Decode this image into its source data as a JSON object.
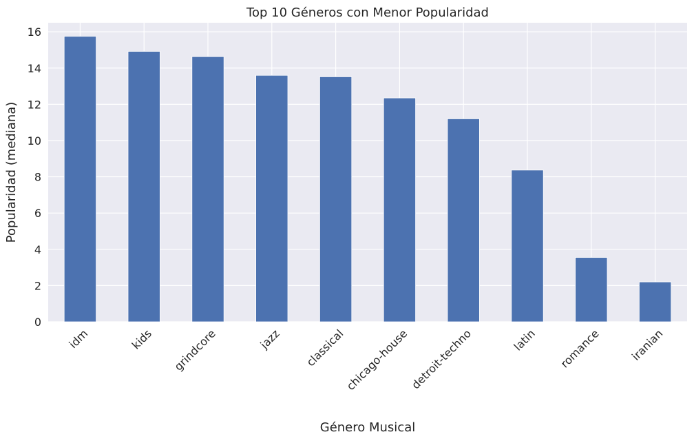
{
  "chart_data": {
    "type": "bar",
    "title": "Top 10 Géneros con Menor Popularidad",
    "xlabel": "Género Musical",
    "ylabel": "Popularidad (mediana)",
    "categories": [
      "idm",
      "kids",
      "grindcore",
      "jazz",
      "classical",
      "chicago-house",
      "detroit-techno",
      "latin",
      "romance",
      "iranian"
    ],
    "values": [
      15.75,
      14.92,
      14.63,
      13.6,
      13.52,
      12.35,
      11.2,
      8.37,
      3.55,
      2.2
    ],
    "ylim": [
      0,
      16.5
    ],
    "yticks": [
      0,
      2,
      4,
      6,
      8,
      10,
      12,
      14,
      16
    ],
    "grid": true,
    "colors": {
      "bar": "#4c72b0",
      "plot_background": "#eaeaf2",
      "grid": "#ffffff"
    }
  }
}
